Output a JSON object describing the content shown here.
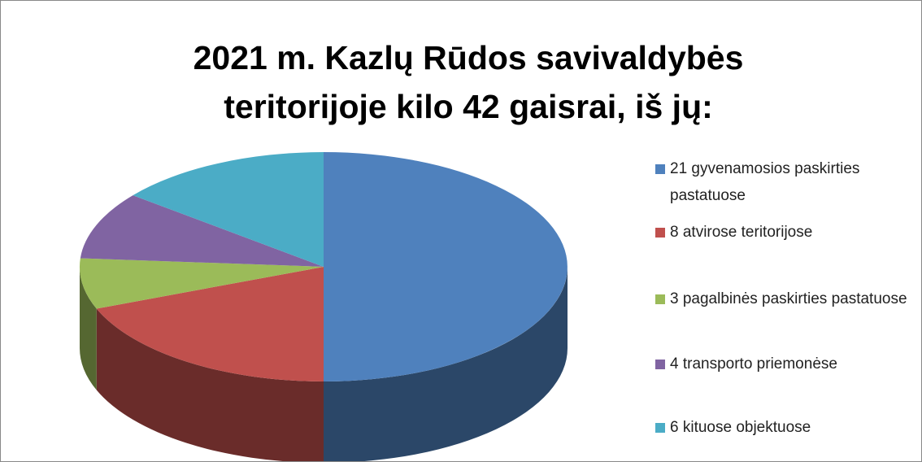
{
  "chart_data": {
    "type": "pie",
    "title": "2021 m. Kazlų Rūdos savivaldybės teritorijoje kilo 42 gaisrai, iš jų:",
    "categories": [
      "21 gyvenamosios paskirties pastatuose",
      "8 atvirose teritorijose",
      "3 pagalbinės paskirties pastatuose",
      "4 transporto priemonėse",
      "6 kituose objektuose"
    ],
    "values": [
      21,
      8,
      3,
      4,
      6
    ],
    "colors": [
      "#4f81bd",
      "#c0504d",
      "#9bbb59",
      "#8064a2",
      "#4bacc6"
    ],
    "legend": "right"
  }
}
